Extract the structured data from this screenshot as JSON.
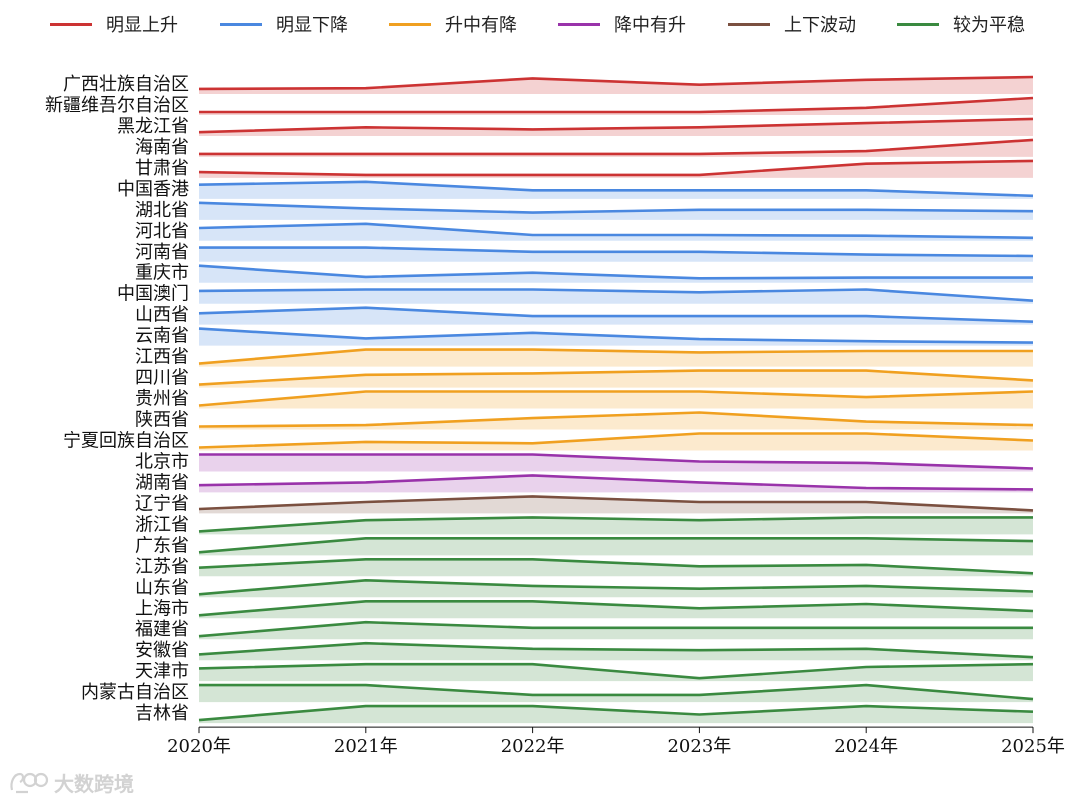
{
  "legend": [
    {
      "name": "明显上升",
      "color": "#cc3333"
    },
    {
      "name": "明显下降",
      "color": "#4a88e0"
    },
    {
      "name": "升中有降",
      "color": "#f0a020"
    },
    {
      "name": "降中有升",
      "color": "#9933aa"
    },
    {
      "name": "上下波动",
      "color": "#7b5040"
    },
    {
      "name": "较为平稳",
      "color": "#3a8a40"
    }
  ],
  "watermark": "大数跨境",
  "chart_data": {
    "type": "area",
    "x": [
      "2020年",
      "2021年",
      "2022年",
      "2023年",
      "2024年",
      "2025年"
    ],
    "xlabel": "",
    "ylabel": "",
    "grid": false,
    "legend_position": "top",
    "categories": [
      "明显上升",
      "明显下降",
      "升中有降",
      "降中有升",
      "上下波动",
      "较为平稳"
    ],
    "series": [
      {
        "name": "广西壮族自治区",
        "category": "明显上升",
        "values": [
          0.15,
          0.2,
          0.9,
          0.45,
          0.8,
          1.0
        ]
      },
      {
        "name": "新疆维吾尔自治区",
        "category": "明显上升",
        "values": [
          0.0,
          0.0,
          0.0,
          0.0,
          0.3,
          1.0
        ]
      },
      {
        "name": "黑龙江省",
        "category": "明显上升",
        "values": [
          0.05,
          0.4,
          0.25,
          0.4,
          0.7,
          1.0
        ]
      },
      {
        "name": "海南省",
        "category": "明显上升",
        "values": [
          0.0,
          0.0,
          0.0,
          0.0,
          0.2,
          1.0
        ]
      },
      {
        "name": "甘肃省",
        "category": "明显上升",
        "values": [
          0.2,
          0.0,
          0.0,
          0.0,
          0.8,
          1.0
        ]
      },
      {
        "name": "中国香港",
        "category": "明显下降",
        "values": [
          0.8,
          1.0,
          0.4,
          0.4,
          0.4,
          0.0
        ]
      },
      {
        "name": "湖北省",
        "category": "明显下降",
        "values": [
          1.0,
          0.6,
          0.3,
          0.5,
          0.5,
          0.4
        ]
      },
      {
        "name": "河北省",
        "category": "明显下降",
        "values": [
          0.7,
          1.0,
          0.2,
          0.2,
          0.15,
          0.0
        ]
      },
      {
        "name": "河南省",
        "category": "明显下降",
        "values": [
          0.8,
          0.8,
          0.5,
          0.5,
          0.3,
          0.2
        ]
      },
      {
        "name": "重庆市",
        "category": "明显下降",
        "values": [
          1.0,
          0.2,
          0.5,
          0.1,
          0.15,
          0.15
        ]
      },
      {
        "name": "中国澳门",
        "category": "明显下降",
        "values": [
          0.7,
          0.8,
          0.8,
          0.6,
          0.8,
          0.0
        ]
      },
      {
        "name": "山西省",
        "category": "明显下降",
        "values": [
          0.6,
          1.0,
          0.4,
          0.4,
          0.4,
          0.0
        ]
      },
      {
        "name": "云南省",
        "category": "明显下降",
        "values": [
          1.0,
          0.3,
          0.7,
          0.25,
          0.1,
          0.0
        ]
      },
      {
        "name": "江西省",
        "category": "升中有降",
        "values": [
          0.0,
          1.0,
          1.0,
          0.8,
          0.9,
          0.9
        ]
      },
      {
        "name": "四川省",
        "category": "升中有降",
        "values": [
          0.0,
          0.7,
          0.8,
          1.0,
          1.0,
          0.3
        ]
      },
      {
        "name": "贵州省",
        "category": "升中有降",
        "values": [
          0.0,
          1.0,
          1.0,
          1.0,
          0.6,
          1.0
        ]
      },
      {
        "name": "陕西省",
        "category": "升中有降",
        "values": [
          0.0,
          0.1,
          0.6,
          1.0,
          0.35,
          0.1
        ]
      },
      {
        "name": "宁夏回族自治区",
        "category": "升中有降",
        "values": [
          0.0,
          0.4,
          0.3,
          1.0,
          1.0,
          0.5
        ]
      },
      {
        "name": "北京市",
        "category": "降中有升",
        "values": [
          1.0,
          1.0,
          1.0,
          0.5,
          0.4,
          0.0
        ]
      },
      {
        "name": "湖南省",
        "category": "降中有升",
        "values": [
          0.3,
          0.5,
          1.0,
          0.5,
          0.1,
          0.0
        ]
      },
      {
        "name": "辽宁省",
        "category": "上下波动",
        "values": [
          0.1,
          0.6,
          1.0,
          0.6,
          0.6,
          0.0
        ]
      },
      {
        "name": "浙江省",
        "category": "较为平稳",
        "values": [
          0.0,
          0.8,
          1.0,
          0.8,
          1.0,
          1.0
        ]
      },
      {
        "name": "广东省",
        "category": "较为平稳",
        "values": [
          0.0,
          1.0,
          1.0,
          1.0,
          1.0,
          0.8
        ]
      },
      {
        "name": "江苏省",
        "category": "较为平稳",
        "values": [
          0.4,
          1.0,
          1.0,
          0.5,
          0.6,
          0.0
        ]
      },
      {
        "name": "山东省",
        "category": "较为平稳",
        "values": [
          0.0,
          1.0,
          0.6,
          0.4,
          0.6,
          0.2
        ]
      },
      {
        "name": "上海市",
        "category": "较为平稳",
        "values": [
          0.0,
          1.0,
          1.0,
          0.5,
          0.8,
          0.3
        ]
      },
      {
        "name": "福建省",
        "category": "较为平稳",
        "values": [
          0.0,
          1.0,
          0.6,
          0.6,
          0.6,
          0.6
        ]
      },
      {
        "name": "安徽省",
        "category": "较为平稳",
        "values": [
          0.2,
          1.0,
          0.6,
          0.5,
          0.6,
          0.0
        ]
      },
      {
        "name": "天津市",
        "category": "较为平稳",
        "values": [
          0.7,
          1.0,
          1.0,
          0.0,
          0.8,
          1.0
        ]
      },
      {
        "name": "内蒙古自治区",
        "category": "较为平稳",
        "values": [
          1.0,
          1.0,
          0.3,
          0.3,
          1.0,
          0.0
        ]
      },
      {
        "name": "吉林省",
        "category": "较为平稳",
        "values": [
          0.0,
          1.0,
          1.0,
          0.4,
          1.0,
          0.6
        ]
      }
    ]
  }
}
